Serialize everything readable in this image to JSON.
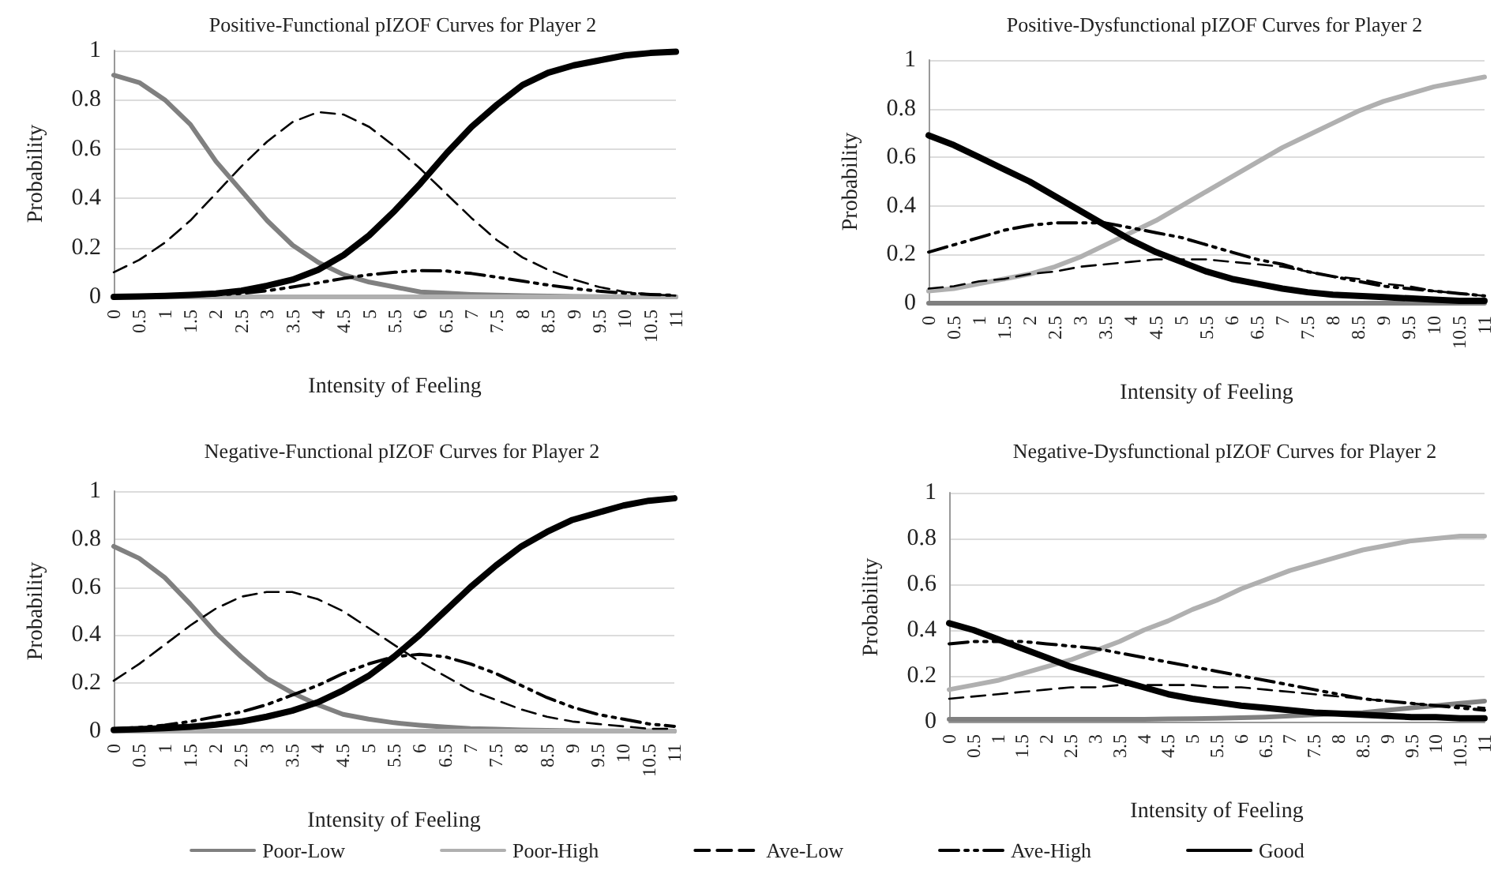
{
  "chart_data": [
    {
      "type": "line",
      "title": "Positive-Functional pIZOF Curves for Player 2",
      "xlabel": "Intensity of Feeling",
      "ylabel": "Probability",
      "categories": [
        "0",
        "0.5",
        "1",
        "1.5",
        "2",
        "2.5",
        "3",
        "3.5",
        "4",
        "4.5",
        "5",
        "5.5",
        "6",
        "6.5",
        "7",
        "7.5",
        "8",
        "8.5",
        "9",
        "9.5",
        "10",
        "10.5",
        "11"
      ],
      "ylim": [
        0,
        1
      ],
      "yticks": [
        0,
        0.2,
        0.4,
        0.6,
        0.8,
        1
      ],
      "grid": "y",
      "marker": "none",
      "series": [
        {
          "color": "#808080",
          "line_style": "solid",
          "values": [
            0.9,
            0.87,
            0.8,
            0.7,
            0.55,
            0.43,
            0.31,
            0.21,
            0.14,
            0.09,
            0.06,
            0.04,
            0.02,
            0.015,
            0.01,
            0.007,
            0.005,
            0.003,
            0.002,
            0.001,
            0.001,
            0,
            0
          ]
        },
        {
          "color": "#b0b0b0",
          "line_style": "solid",
          "values": [
            0,
            0,
            0,
            0,
            0,
            0,
            0,
            0,
            0,
            0,
            0,
            0,
            0,
            0,
            0,
            0,
            0,
            0,
            0,
            0,
            0,
            0,
            0
          ]
        },
        {
          "color": "#000000",
          "line_style": "dashed",
          "values": [
            0.1,
            0.15,
            0.22,
            0.31,
            0.42,
            0.53,
            0.63,
            0.71,
            0.75,
            0.74,
            0.69,
            0.61,
            0.52,
            0.42,
            0.32,
            0.23,
            0.16,
            0.11,
            0.07,
            0.04,
            0.02,
            0.01,
            0.005
          ]
        },
        {
          "color": "#000000",
          "line_style": "dotted",
          "values": [
            0,
            0,
            0.002,
            0.004,
            0.008,
            0.014,
            0.025,
            0.04,
            0.057,
            0.075,
            0.09,
            0.1,
            0.107,
            0.105,
            0.095,
            0.08,
            0.064,
            0.048,
            0.034,
            0.023,
            0.015,
            0.01,
            0.006
          ]
        },
        {
          "color": "#000000",
          "line_style": "solid",
          "values": [
            0,
            0.002,
            0.004,
            0.008,
            0.014,
            0.025,
            0.045,
            0.07,
            0.11,
            0.17,
            0.25,
            0.35,
            0.46,
            0.58,
            0.69,
            0.78,
            0.86,
            0.91,
            0.94,
            0.96,
            0.98,
            0.99,
            0.995
          ]
        }
      ]
    },
    {
      "type": "line",
      "title": "Positive-Dysfunctional pIZOF Curves for Player 2",
      "xlabel": "Intensity of Feeling",
      "ylabel": "Probability",
      "categories": [
        "0",
        "0.5",
        "1",
        "1.5",
        "2",
        "2.5",
        "3",
        "3.5",
        "4",
        "4.5",
        "5",
        "5.5",
        "6",
        "6.5",
        "7",
        "7.5",
        "8",
        "8.5",
        "9",
        "9.5",
        "10",
        "10.5",
        "11"
      ],
      "ylim": [
        0,
        1
      ],
      "yticks": [
        0,
        0.2,
        0.4,
        0.6,
        0.8,
        1
      ],
      "grid": "y",
      "marker": "none",
      "series": [
        {
          "color": "#808080",
          "line_style": "solid",
          "values": [
            0,
            0,
            0,
            0,
            0,
            0,
            0,
            0,
            0,
            0,
            0,
            0,
            0,
            0,
            0,
            0,
            0,
            0,
            0,
            0,
            0,
            0,
            0
          ]
        },
        {
          "color": "#b0b0b0",
          "line_style": "solid",
          "values": [
            0.05,
            0.06,
            0.08,
            0.1,
            0.12,
            0.15,
            0.19,
            0.24,
            0.29,
            0.34,
            0.4,
            0.46,
            0.52,
            0.58,
            0.64,
            0.69,
            0.74,
            0.79,
            0.83,
            0.86,
            0.89,
            0.91,
            0.93
          ]
        },
        {
          "color": "#000000",
          "line_style": "dashed",
          "values": [
            0.06,
            0.07,
            0.09,
            0.1,
            0.12,
            0.13,
            0.15,
            0.16,
            0.17,
            0.18,
            0.18,
            0.18,
            0.17,
            0.16,
            0.15,
            0.13,
            0.11,
            0.1,
            0.08,
            0.07,
            0.05,
            0.04,
            0.03
          ]
        },
        {
          "color": "#000000",
          "line_style": "dotted",
          "values": [
            0.21,
            0.24,
            0.27,
            0.3,
            0.32,
            0.33,
            0.33,
            0.33,
            0.31,
            0.29,
            0.27,
            0.24,
            0.21,
            0.18,
            0.16,
            0.13,
            0.11,
            0.09,
            0.07,
            0.06,
            0.05,
            0.04,
            0.03
          ]
        },
        {
          "color": "#000000",
          "line_style": "solid",
          "values": [
            0.69,
            0.65,
            0.6,
            0.55,
            0.5,
            0.44,
            0.38,
            0.32,
            0.26,
            0.21,
            0.17,
            0.13,
            0.1,
            0.08,
            0.06,
            0.045,
            0.035,
            0.03,
            0.025,
            0.02,
            0.015,
            0.01,
            0.01
          ]
        }
      ]
    },
    {
      "type": "line",
      "title": "Negative-Functional pIZOF Curves for Player 2",
      "xlabel": "Intensity of Feeling",
      "ylabel": "Probability",
      "categories": [
        "0",
        "0.5",
        "1",
        "1.5",
        "2",
        "2.5",
        "3",
        "3.5",
        "4",
        "4.5",
        "5",
        "5.5",
        "6",
        "6.5",
        "7",
        "7.5",
        "8",
        "8.5",
        "9",
        "9.5",
        "10",
        "10.5",
        "11"
      ],
      "ylim": [
        0,
        1
      ],
      "yticks": [
        0,
        0.2,
        0.4,
        0.6,
        0.8,
        1
      ],
      "grid": "y",
      "marker": "none",
      "legend": "bottom",
      "series": [
        {
          "name": "Poor-Low",
          "color": "#808080",
          "line_style": "solid",
          "values": [
            0.77,
            0.72,
            0.64,
            0.53,
            0.41,
            0.31,
            0.22,
            0.16,
            0.11,
            0.07,
            0.05,
            0.035,
            0.025,
            0.017,
            0.011,
            0.008,
            0.005,
            0.003,
            0.002,
            0.001,
            0.001,
            0.001,
            0
          ]
        },
        {
          "name": "Poor-High",
          "color": "#b0b0b0",
          "line_style": "solid",
          "values": [
            0,
            0,
            0,
            0,
            0,
            0,
            0,
            0,
            0,
            0,
            0,
            0,
            0,
            0,
            0,
            0,
            0,
            0,
            0,
            0,
            0,
            0,
            0
          ]
        },
        {
          "name": "Ave-Low",
          "color": "#000000",
          "line_style": "dashed",
          "values": [
            0.21,
            0.28,
            0.36,
            0.44,
            0.51,
            0.56,
            0.58,
            0.58,
            0.55,
            0.5,
            0.43,
            0.36,
            0.29,
            0.23,
            0.17,
            0.13,
            0.09,
            0.06,
            0.04,
            0.03,
            0.02,
            0.01,
            0.01
          ]
        },
        {
          "name": "Ave-High",
          "color": "#000000",
          "line_style": "dotted",
          "values": [
            0.01,
            0.015,
            0.025,
            0.04,
            0.06,
            0.08,
            0.11,
            0.15,
            0.19,
            0.24,
            0.28,
            0.31,
            0.32,
            0.31,
            0.28,
            0.24,
            0.19,
            0.14,
            0.1,
            0.07,
            0.05,
            0.03,
            0.02
          ]
        },
        {
          "name": "Good",
          "color": "#000000",
          "line_style": "solid",
          "values": [
            0.005,
            0.008,
            0.012,
            0.018,
            0.027,
            0.04,
            0.06,
            0.085,
            0.12,
            0.17,
            0.23,
            0.31,
            0.4,
            0.5,
            0.6,
            0.69,
            0.77,
            0.83,
            0.88,
            0.91,
            0.94,
            0.96,
            0.97
          ]
        }
      ]
    },
    {
      "type": "line",
      "title": "Negative-Dysfunctional pIZOF Curves for Player 2",
      "xlabel": "Intensity of Feeling",
      "ylabel": "Probability",
      "categories": [
        "0",
        "0.5",
        "1",
        "1.5",
        "2",
        "2.5",
        "3",
        "3.5",
        "4",
        "4.5",
        "5",
        "5.5",
        "6",
        "6.5",
        "7",
        "7.5",
        "8",
        "8.5",
        "9",
        "9.5",
        "10",
        "10.5",
        "11"
      ],
      "ylim": [
        0,
        1
      ],
      "yticks": [
        0,
        0.2,
        0.4,
        0.6,
        0.8,
        1
      ],
      "grid": "y",
      "marker": "none",
      "series": [
        {
          "color": "#808080",
          "line_style": "solid",
          "values": [
            0.01,
            0.01,
            0.01,
            0.01,
            0.01,
            0.01,
            0.01,
            0.01,
            0.01,
            0.012,
            0.013,
            0.015,
            0.017,
            0.02,
            0.025,
            0.03,
            0.035,
            0.04,
            0.05,
            0.06,
            0.07,
            0.08,
            0.09
          ]
        },
        {
          "color": "#b0b0b0",
          "line_style": "solid",
          "values": [
            0.14,
            0.16,
            0.18,
            0.21,
            0.24,
            0.27,
            0.31,
            0.35,
            0.4,
            0.44,
            0.49,
            0.53,
            0.58,
            0.62,
            0.66,
            0.69,
            0.72,
            0.75,
            0.77,
            0.79,
            0.8,
            0.81,
            0.81
          ]
        },
        {
          "color": "#000000",
          "line_style": "dashed",
          "values": [
            0.1,
            0.11,
            0.12,
            0.13,
            0.14,
            0.15,
            0.15,
            0.16,
            0.16,
            0.16,
            0.16,
            0.15,
            0.15,
            0.14,
            0.13,
            0.12,
            0.11,
            0.1,
            0.09,
            0.08,
            0.07,
            0.07,
            0.06
          ]
        },
        {
          "color": "#000000",
          "line_style": "dotted",
          "values": [
            0.34,
            0.35,
            0.35,
            0.35,
            0.34,
            0.33,
            0.32,
            0.3,
            0.28,
            0.26,
            0.24,
            0.22,
            0.2,
            0.18,
            0.16,
            0.14,
            0.12,
            0.1,
            0.09,
            0.08,
            0.07,
            0.06,
            0.05
          ]
        },
        {
          "color": "#000000",
          "line_style": "solid",
          "values": [
            0.43,
            0.4,
            0.36,
            0.32,
            0.28,
            0.24,
            0.21,
            0.18,
            0.15,
            0.12,
            0.1,
            0.085,
            0.07,
            0.06,
            0.05,
            0.04,
            0.035,
            0.03,
            0.025,
            0.02,
            0.02,
            0.015,
            0.015
          ]
        }
      ]
    }
  ]
}
